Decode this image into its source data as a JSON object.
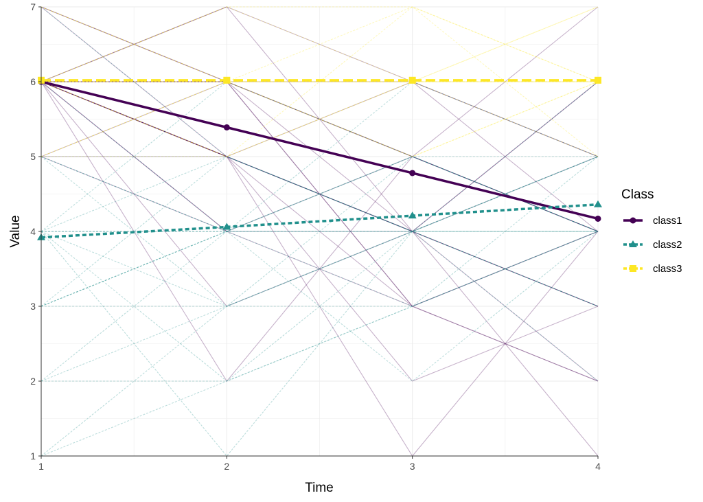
{
  "chart_data": {
    "type": "line",
    "title": "",
    "xlabel": "Time",
    "ylabel": "Value",
    "x": [
      1,
      2,
      3,
      4
    ],
    "xlim": [
      1,
      4
    ],
    "ylim": [
      1,
      7
    ],
    "xticks": [
      "1",
      "2",
      "3",
      "4"
    ],
    "yticks": [
      "1",
      "2",
      "3",
      "4",
      "5",
      "6",
      "7"
    ],
    "grid": true,
    "legend": {
      "title": "Class",
      "position": "right"
    },
    "series": [
      {
        "name": "class1",
        "color": "#440154",
        "dash": "solid",
        "marker": "circle",
        "values": [
          6.0,
          5.39,
          4.78,
          4.17
        ]
      },
      {
        "name": "class2",
        "color": "#21908C",
        "dash": "dashed",
        "marker": "triangle",
        "values": [
          3.92,
          4.06,
          4.21,
          4.36
        ]
      },
      {
        "name": "class3",
        "color": "#FDE725",
        "dash": "longdash",
        "marker": "square",
        "values": [
          6.02,
          6.02,
          6.02,
          6.02
        ]
      }
    ],
    "individual_trajectories": {
      "class1": [
        [
          6,
          5,
          4,
          3
        ],
        [
          6,
          6,
          5,
          4
        ],
        [
          6,
          4,
          3,
          2
        ],
        [
          7,
          6,
          5,
          4
        ],
        [
          6,
          7,
          6,
          5
        ],
        [
          6,
          5,
          6,
          4
        ],
        [
          5,
          6,
          4,
          3
        ],
        [
          6,
          5,
          3,
          4
        ],
        [
          6,
          4,
          4,
          3
        ],
        [
          7,
          5,
          4,
          2
        ],
        [
          6,
          6,
          3,
          4
        ],
        [
          5,
          4,
          5,
          4
        ],
        [
          6,
          5,
          2,
          3
        ],
        [
          6,
          7,
          4,
          6
        ],
        [
          6,
          5,
          1,
          4
        ],
        [
          6,
          6,
          5,
          7
        ],
        [
          7,
          6,
          3,
          2
        ],
        [
          6,
          3,
          4,
          5
        ],
        [
          5,
          5,
          4,
          1
        ],
        [
          6,
          6,
          6,
          5
        ],
        [
          6,
          5,
          4,
          6
        ],
        [
          6,
          2,
          5,
          4
        ]
      ],
      "class2": [
        [
          4,
          4,
          4,
          4
        ],
        [
          3,
          4,
          5,
          4
        ],
        [
          5,
          4,
          4,
          5
        ],
        [
          4,
          3,
          4,
          5
        ],
        [
          2,
          4,
          5,
          4
        ],
        [
          4,
          5,
          4,
          3
        ],
        [
          3,
          3,
          4,
          4
        ],
        [
          5,
          5,
          4,
          4
        ],
        [
          4,
          4,
          3,
          5
        ],
        [
          1,
          3,
          4,
          5
        ],
        [
          6,
          4,
          4,
          3
        ],
        [
          4,
          6,
          5,
          4
        ],
        [
          3,
          5,
          4,
          6
        ],
        [
          2,
          3,
          3,
          4
        ],
        [
          4,
          2,
          3,
          4
        ],
        [
          5,
          4,
          6,
          5
        ],
        [
          3,
          4,
          2,
          4
        ],
        [
          4,
          1,
          4,
          3
        ],
        [
          7,
          5,
          4,
          4
        ],
        [
          2,
          2,
          4,
          5
        ],
        [
          4,
          4,
          5,
          5
        ],
        [
          3,
          4,
          4,
          2
        ],
        [
          5,
          3,
          5,
          4
        ],
        [
          1,
          2,
          3,
          4
        ]
      ],
      "class3": [
        [
          6,
          6,
          6,
          6
        ],
        [
          6,
          7,
          6,
          6
        ],
        [
          5,
          6,
          7,
          6
        ],
        [
          7,
          6,
          6,
          6
        ],
        [
          6,
          5,
          6,
          7
        ],
        [
          6,
          6,
          5,
          6
        ],
        [
          5,
          6,
          6,
          5
        ],
        [
          6,
          7,
          7,
          6
        ],
        [
          7,
          6,
          5,
          6
        ],
        [
          6,
          5,
          7,
          5
        ],
        [
          6,
          6,
          6,
          7
        ],
        [
          5,
          5,
          6,
          6
        ]
      ]
    }
  }
}
